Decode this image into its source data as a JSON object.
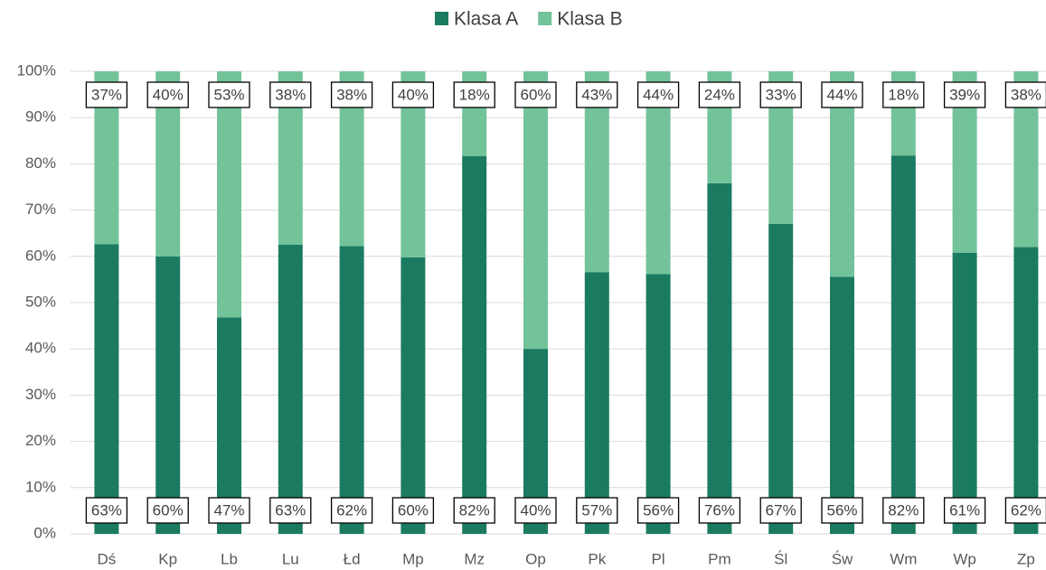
{
  "chart_data": {
    "type": "stacked_bar",
    "categories": [
      "Dś",
      "Kp",
      "Lb",
      "Lu",
      "Łd",
      "Mp",
      "Mz",
      "Op",
      "Pk",
      "Pl",
      "Pm",
      "Śl",
      "Św",
      "Wm",
      "Wp",
      "Zp"
    ],
    "series": [
      {
        "name": "Klasa A",
        "color": "#1b7b61",
        "values": [
          62.6,
          60,
          46.8,
          62.5,
          62.2,
          59.8,
          81.7,
          40,
          56.6,
          56.2,
          75.8,
          67,
          55.6,
          81.8,
          60.8,
          62
        ],
        "value_labels": [
          "63%",
          "60%",
          "47%",
          "63%",
          "62%",
          "60%",
          "82%",
          "40%",
          "57%",
          "56%",
          "76%",
          "67%",
          "56%",
          "82%",
          "61%",
          "62%"
        ]
      },
      {
        "name": "Klasa B",
        "color": "#72c29a",
        "values": [
          37.4,
          40,
          53.2,
          37.5,
          37.8,
          40.2,
          18.3,
          60,
          43.4,
          43.8,
          24.2,
          33,
          44.4,
          18.2,
          39.2,
          38
        ],
        "value_labels": [
          "37%",
          "40%",
          "53%",
          "38%",
          "38%",
          "40%",
          "18%",
          "60%",
          "43%",
          "44%",
          "24%",
          "33%",
          "44%",
          "18%",
          "39%",
          "38%"
        ]
      }
    ],
    "ylim": [
      0,
      100
    ],
    "yticks": [
      {
        "value": 0,
        "label": "0%"
      },
      {
        "value": 10,
        "label": "10%"
      },
      {
        "value": 20,
        "label": "20%"
      },
      {
        "value": 30,
        "label": "30%"
      },
      {
        "value": 40,
        "label": "40%"
      },
      {
        "value": 50,
        "label": "50%"
      },
      {
        "value": 60,
        "label": "60%"
      },
      {
        "value": 70,
        "label": "70%"
      },
      {
        "value": 80,
        "label": "80%"
      },
      {
        "value": 90,
        "label": "90%"
      },
      {
        "value": 100,
        "label": "100%"
      }
    ],
    "grid": true,
    "legend": "top"
  }
}
